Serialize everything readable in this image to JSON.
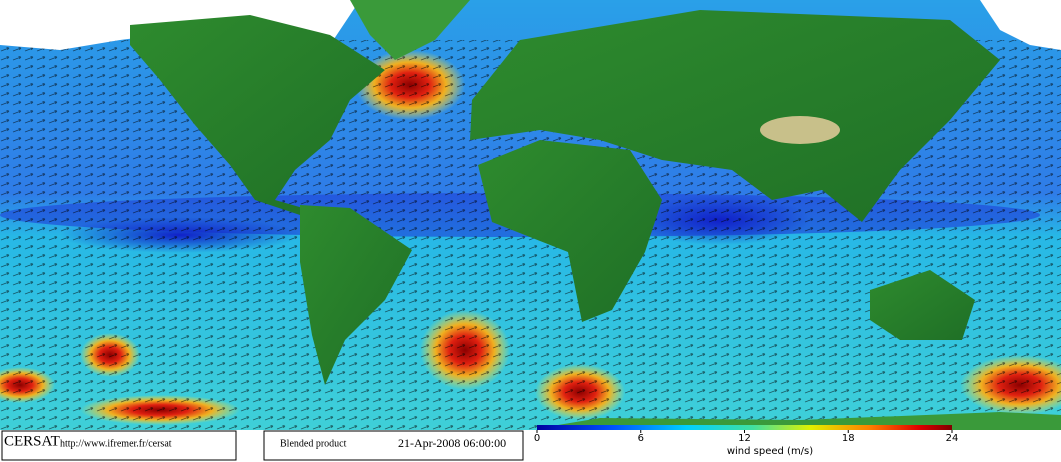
{
  "footer": {
    "logo": "CERSAT",
    "url": "http://www.ifremer.fr/cersat",
    "product": "Blended product",
    "date": "21-Apr-2008 06:00:00"
  },
  "colorbar": {
    "label": "wind speed (m/s)",
    "lim": [
      0,
      24
    ],
    "ticks": [
      0,
      6,
      12,
      18,
      24
    ]
  }
}
